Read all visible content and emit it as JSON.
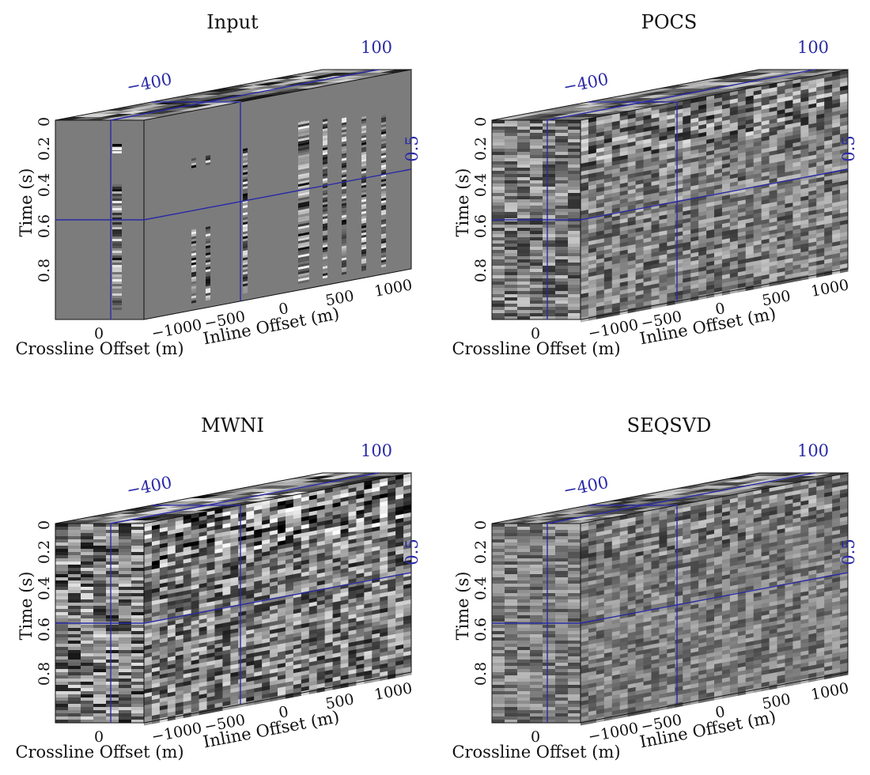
{
  "chart_data": [
    {
      "type": "heatmap",
      "title": "Input",
      "time_axis": {
        "label": "Time (s)",
        "ticks": [
          "0",
          "0.2",
          "0.4",
          "0.6",
          "0.8"
        ]
      },
      "crossline_axis": {
        "label": "Crossline Offset (m)",
        "ticks": [
          "0"
        ]
      },
      "inline_axis": {
        "label": "Inline Offset (m)",
        "ticks": [
          "-1000",
          "-500",
          "0",
          "500",
          "1000"
        ]
      },
      "slice_labels": {
        "crossline": "-400",
        "inline": "100",
        "time": "0.5"
      },
      "content": "sparse"
    },
    {
      "type": "heatmap",
      "title": "POCS",
      "time_axis": {
        "label": "Time (s)",
        "ticks": [
          "0",
          "0.2",
          "0.4",
          "0.6",
          "0.8"
        ]
      },
      "crossline_axis": {
        "label": "Crossline Offset (m)",
        "ticks": [
          "0"
        ]
      },
      "inline_axis": {
        "label": "Inline Offset (m)",
        "ticks": [
          "-1000",
          "-500",
          "0",
          "500",
          "1000"
        ]
      },
      "slice_labels": {
        "crossline": "-400",
        "inline": "100",
        "time": "0.5"
      },
      "content": "dense"
    },
    {
      "type": "heatmap",
      "title": "MWNI",
      "time_axis": {
        "label": "Time (s)",
        "ticks": [
          "0",
          "0.2",
          "0.4",
          "0.6",
          "0.8"
        ]
      },
      "crossline_axis": {
        "label": "Crossline Offset (m)",
        "ticks": [
          "0"
        ]
      },
      "inline_axis": {
        "label": "Inline Offset (m)",
        "ticks": [
          "-1000",
          "-500",
          "0",
          "500",
          "1000"
        ]
      },
      "slice_labels": {
        "crossline": "-400",
        "inline": "100",
        "time": "0.5"
      },
      "content": "dense-strong"
    },
    {
      "type": "heatmap",
      "title": "SEQSVD",
      "time_axis": {
        "label": "Time (s)",
        "ticks": [
          "0",
          "0.2",
          "0.4",
          "0.6",
          "0.8"
        ]
      },
      "crossline_axis": {
        "label": "Crossline Offset (m)",
        "ticks": [
          "0"
        ]
      },
      "inline_axis": {
        "label": "Inline Offset (m)",
        "ticks": [
          "-1000",
          "-500",
          "0",
          "500",
          "1000"
        ]
      },
      "slice_labels": {
        "crossline": "-400",
        "inline": "100",
        "time": "0.5"
      },
      "content": "dense-weak"
    }
  ]
}
